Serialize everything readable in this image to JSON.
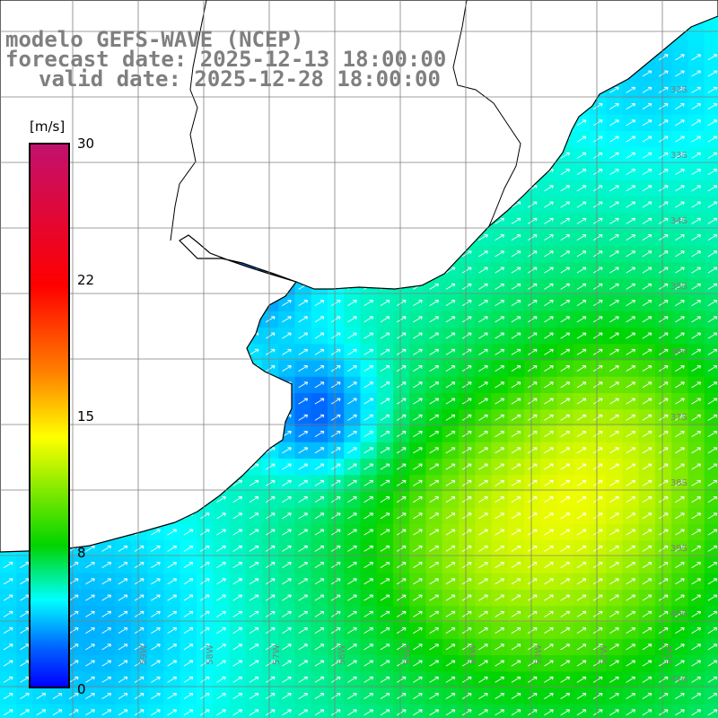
{
  "titles": {
    "line1": "modelo GEFS-WAVE (NCEP)",
    "line2": "forecast date: 2025-12-13 18:00:00",
    "line3": "valid date: 2025-12-28 18:00:00"
  },
  "colorbar": {
    "unit": "[m/s]",
    "min": 0,
    "max": 30,
    "ticks": [
      "30",
      "22",
      "15",
      "8",
      "0"
    ],
    "colors": [
      "#0000ff",
      "#0060ff",
      "#00ffff",
      "#00d400",
      "#ffff00",
      "#ff8000",
      "#ff0000",
      "#c2106e"
    ]
  },
  "latitude_labels": [
    "32S",
    "33S",
    "34S",
    "35S",
    "36S",
    "37S",
    "38S",
    "39S",
    "40S",
    "41S"
  ],
  "longitude_labels": [
    "59W",
    "58W",
    "57W",
    "56W",
    "55W",
    "54W",
    "53W",
    "52W",
    "51W"
  ],
  "colors": {
    "land": "#ffffff",
    "coastline": "#000000",
    "grid": "#7f7f7f",
    "arrows": "#ffffff",
    "text": "#7f7f7f"
  }
}
